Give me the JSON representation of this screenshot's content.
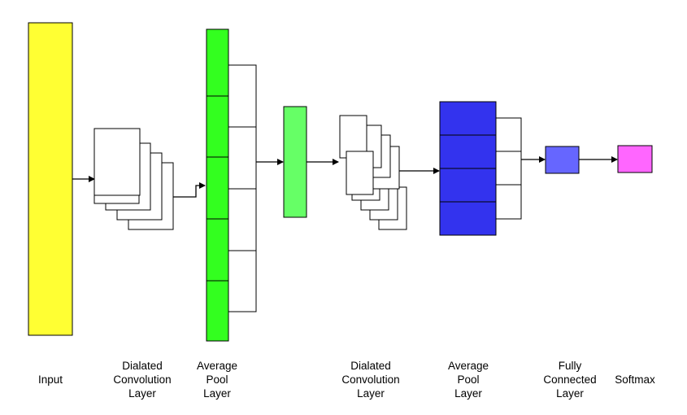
{
  "labels": {
    "input": [
      "Input"
    ],
    "conv1": [
      "Dialated",
      "Convolution",
      "Layer"
    ],
    "pool1": [
      "Average",
      "Pool",
      "Layer"
    ],
    "conv2": [
      "Dialated",
      "Convolution",
      "Layer"
    ],
    "pool2": [
      "Average",
      "Pool",
      "Layer"
    ],
    "fc": [
      "Fully",
      "Connected",
      "Layer"
    ],
    "softmax": [
      "Softmax"
    ]
  },
  "colors": {
    "input": "#ffff33",
    "pool1": "#33ff1f",
    "mid": "#66ff66",
    "pool2": "#3333ee",
    "fc": "#6666ff",
    "softmax": "#ff66ff",
    "stroke": "#000000",
    "feature_map": "#ffffff"
  }
}
